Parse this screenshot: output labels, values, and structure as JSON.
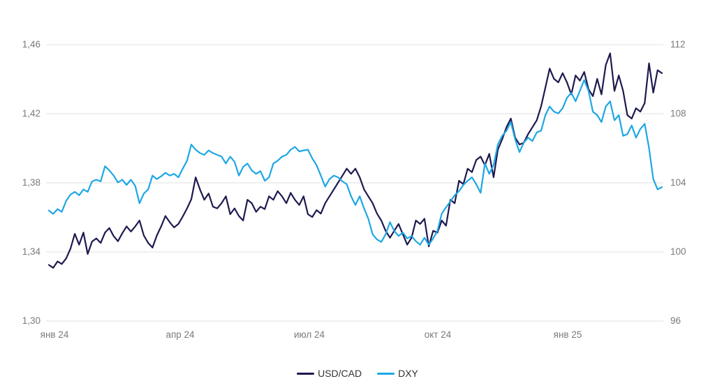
{
  "chart_data": {
    "type": "line",
    "title": "",
    "grid": true,
    "legend_position": "bottom",
    "colors": {
      "usdcad": "#1d1a4f",
      "dxy": "#1ea7e3",
      "gridline": "#e0e0e0",
      "tick_text": "#7a7a7a",
      "legend_text": "#333333"
    },
    "x_tick_labels": [
      "янв 24",
      "апр 24",
      "июл 24",
      "окт 24",
      "янв 25"
    ],
    "x_tick_indices": [
      0,
      30,
      60,
      90,
      120
    ],
    "left_axis": {
      "title": "",
      "ticks": [
        "1,46",
        "1,42",
        "1,38",
        "1,34",
        "1,30"
      ],
      "min": 1.3,
      "max": 1.46
    },
    "right_axis": {
      "title": "",
      "ticks": [
        "112",
        "108",
        "104",
        "100",
        "96"
      ],
      "min": 96,
      "max": 112
    },
    "series": [
      {
        "name": "USD/CAD",
        "color": "#1d1a4f",
        "axis": "left",
        "values": [
          1.3325,
          1.3308,
          1.3345,
          1.333,
          1.3362,
          1.3418,
          1.3505,
          1.3442,
          1.3512,
          1.3388,
          1.346,
          1.3478,
          1.3452,
          1.3512,
          1.3538,
          1.3492,
          1.3462,
          1.3508,
          1.3548,
          1.3518,
          1.3548,
          1.3582,
          1.3495,
          1.3452,
          1.3425,
          1.3495,
          1.3548,
          1.3608,
          1.3572,
          1.3542,
          1.3562,
          1.3605,
          1.3652,
          1.3705,
          1.3832,
          1.3762,
          1.3702,
          1.3738,
          1.3662,
          1.3652,
          1.3682,
          1.3722,
          1.3618,
          1.3652,
          1.3608,
          1.3582,
          1.3702,
          1.3682,
          1.3632,
          1.3662,
          1.3648,
          1.3722,
          1.3702,
          1.3752,
          1.3722,
          1.3682,
          1.3742,
          1.3702,
          1.3672,
          1.3722,
          1.3618,
          1.3602,
          1.3642,
          1.3622,
          1.3682,
          1.3722,
          1.3762,
          1.3802,
          1.3842,
          1.3882,
          1.3852,
          1.3882,
          1.3832,
          1.3762,
          1.3722,
          1.3682,
          1.3622,
          1.3582,
          1.3522,
          1.3482,
          1.3522,
          1.3562,
          1.3502,
          1.3442,
          1.3482,
          1.3582,
          1.3562,
          1.3592,
          1.3432,
          1.3522,
          1.3512,
          1.3582,
          1.3552,
          1.3702,
          1.3682,
          1.3812,
          1.3792,
          1.3882,
          1.3862,
          1.3932,
          1.3952,
          1.3902,
          1.3968,
          1.3832,
          1.3992,
          1.4052,
          1.4122,
          1.4172,
          1.4062,
          1.4022,
          1.4032,
          1.4082,
          1.4122,
          1.4162,
          1.4242,
          1.4352,
          1.4462,
          1.4402,
          1.4382,
          1.4435,
          1.4382,
          1.4312,
          1.4422,
          1.4392,
          1.4442,
          1.4342,
          1.4302,
          1.4402,
          1.4312,
          1.4482,
          1.455,
          1.4332,
          1.4422,
          1.4332,
          1.4192,
          1.4172,
          1.4232,
          1.4212,
          1.4262,
          1.4492,
          1.4322,
          1.4452,
          1.4435
        ]
      },
      {
        "name": "DXY",
        "color": "#1ea7e3",
        "axis": "right",
        "values": [
          102.4,
          102.2,
          102.48,
          102.32,
          102.95,
          103.32,
          103.48,
          103.28,
          103.62,
          103.48,
          104.08,
          104.18,
          104.08,
          104.96,
          104.72,
          104.42,
          104.02,
          104.18,
          103.88,
          104.18,
          103.82,
          102.82,
          103.38,
          103.62,
          104.42,
          104.22,
          104.38,
          104.58,
          104.42,
          104.52,
          104.32,
          104.82,
          105.28,
          106.22,
          105.92,
          105.72,
          105.62,
          105.88,
          105.72,
          105.62,
          105.52,
          105.12,
          105.52,
          105.22,
          104.42,
          104.92,
          105.12,
          104.72,
          104.52,
          104.68,
          104.12,
          104.32,
          105.12,
          105.28,
          105.52,
          105.62,
          105.92,
          106.08,
          105.82,
          105.88,
          105.92,
          105.42,
          105.02,
          104.42,
          103.78,
          104.22,
          104.42,
          104.32,
          104.08,
          103.92,
          103.22,
          102.72,
          103.22,
          102.52,
          101.92,
          101.02,
          100.72,
          100.58,
          101.02,
          101.72,
          101.22,
          100.92,
          101.12,
          100.78,
          100.92,
          100.62,
          100.42,
          100.82,
          100.42,
          100.78,
          101.22,
          102.22,
          102.58,
          102.92,
          103.28,
          103.52,
          103.88,
          104.12,
          104.32,
          103.92,
          103.42,
          105.12,
          104.52,
          105.02,
          106.22,
          106.72,
          107.02,
          107.52,
          106.52,
          105.78,
          106.32,
          106.62,
          106.42,
          106.92,
          107.02,
          107.92,
          108.42,
          108.12,
          108.02,
          108.32,
          108.92,
          109.22,
          108.72,
          109.32,
          109.96,
          109.32,
          108.12,
          107.92,
          107.52,
          108.42,
          108.72,
          107.62,
          107.92,
          106.72,
          106.82,
          107.32,
          106.62,
          107.12,
          107.42,
          106.02,
          104.22,
          103.62,
          103.75
        ]
      }
    ]
  }
}
